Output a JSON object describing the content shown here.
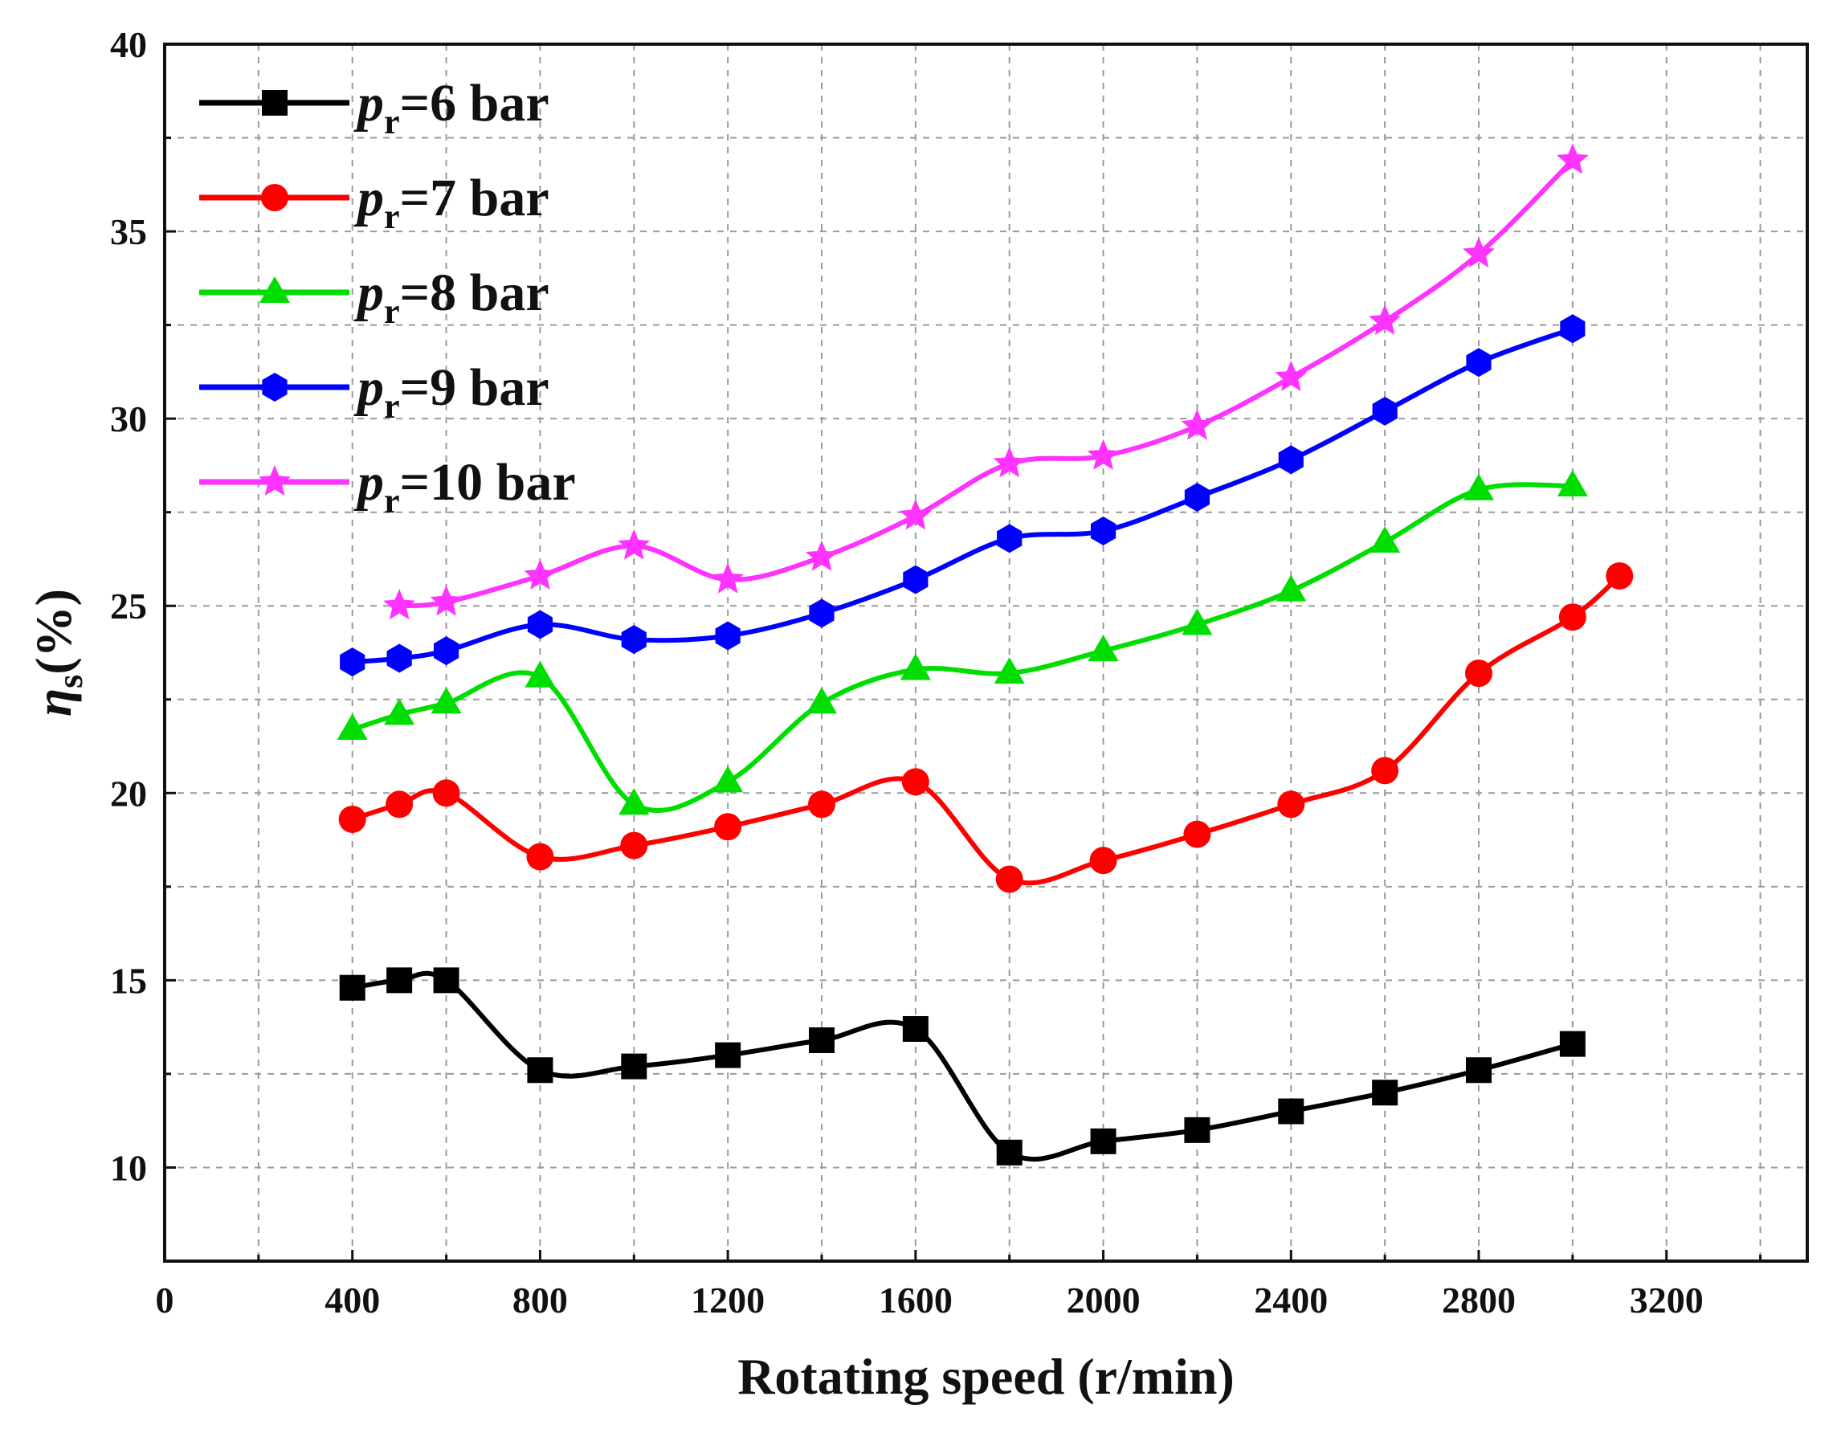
{
  "chart_data": {
    "type": "line",
    "title": "",
    "xlabel": "Rotating speed (r/min)",
    "ylabel": {
      "main": "η",
      "sub": "s",
      "unit": "(%)"
    },
    "xlim": [
      0,
      3500
    ],
    "ylim": [
      7.5,
      40
    ],
    "x_ticks": [
      0,
      400,
      800,
      1200,
      1600,
      2000,
      2400,
      2800,
      3200
    ],
    "x_tick_labels": [
      "0",
      "400",
      "800",
      "1200",
      "1600",
      "2000",
      "2400",
      "2800",
      "3200"
    ],
    "y_ticks": [
      10,
      15,
      20,
      25,
      30,
      35,
      40
    ],
    "y_tick_labels": [
      "10",
      "15",
      "20",
      "25",
      "30",
      "35",
      "40"
    ],
    "grid": true,
    "legend_position": "top-left",
    "series": [
      {
        "name": "pr=6 bar",
        "label_sym": "p",
        "label_sub": "r",
        "label_rest": "=6 bar",
        "color": "#000000",
        "marker": "square",
        "x": [
          400,
          500,
          600,
          800,
          1000,
          1200,
          1400,
          1600,
          1800,
          2000,
          2200,
          2400,
          2600,
          2800,
          3000
        ],
        "y": [
          14.8,
          15.0,
          15.0,
          12.6,
          12.7,
          13.0,
          13.4,
          13.7,
          10.4,
          10.7,
          11.0,
          11.5,
          12.0,
          12.6,
          13.3
        ]
      },
      {
        "name": "pr=7 bar",
        "label_sym": "p",
        "label_sub": "r",
        "label_rest": "=7 bar",
        "color": "#ff0000",
        "marker": "circle",
        "x": [
          400,
          500,
          600,
          800,
          1000,
          1200,
          1400,
          1600,
          1800,
          2000,
          2200,
          2400,
          2600,
          2800,
          3000,
          3100
        ],
        "y": [
          19.3,
          19.7,
          20.0,
          18.3,
          18.6,
          19.1,
          19.7,
          20.3,
          17.7,
          18.2,
          18.9,
          19.7,
          20.6,
          23.2,
          24.7,
          25.8
        ]
      },
      {
        "name": "pr=8 bar",
        "label_sym": "p",
        "label_sub": "r",
        "label_rest": "=8 bar",
        "color": "#00dd00",
        "marker": "triangle",
        "x": [
          400,
          500,
          600,
          800,
          1000,
          1200,
          1400,
          1600,
          1800,
          2000,
          2200,
          2400,
          2600,
          2800,
          3000
        ],
        "y": [
          21.7,
          22.1,
          22.4,
          23.1,
          19.7,
          20.3,
          22.4,
          23.3,
          23.2,
          23.8,
          24.5,
          25.4,
          26.7,
          28.1,
          28.2
        ]
      },
      {
        "name": "pr=9 bar",
        "label_sym": "p",
        "label_sub": "r",
        "label_rest": "=9 bar",
        "color": "#0000ff",
        "marker": "hexagon",
        "x": [
          400,
          500,
          600,
          800,
          1000,
          1200,
          1400,
          1600,
          1800,
          2000,
          2200,
          2400,
          2600,
          2800,
          3000
        ],
        "y": [
          23.5,
          23.6,
          23.8,
          24.5,
          24.1,
          24.2,
          24.8,
          25.7,
          26.8,
          27.0,
          27.9,
          28.9,
          30.2,
          31.5,
          32.4
        ]
      },
      {
        "name": "pr=10 bar",
        "label_sym": "p",
        "label_sub": "r",
        "label_rest": "=10 bar",
        "color": "#ff33ff",
        "marker": "star",
        "x": [
          500,
          600,
          800,
          1000,
          1200,
          1400,
          1600,
          1800,
          2000,
          2200,
          2400,
          2600,
          2800,
          3000
        ],
        "y": [
          25.0,
          25.1,
          25.8,
          26.6,
          25.7,
          26.3,
          27.4,
          28.8,
          29.0,
          29.8,
          31.1,
          32.6,
          34.4,
          36.9
        ]
      }
    ]
  }
}
